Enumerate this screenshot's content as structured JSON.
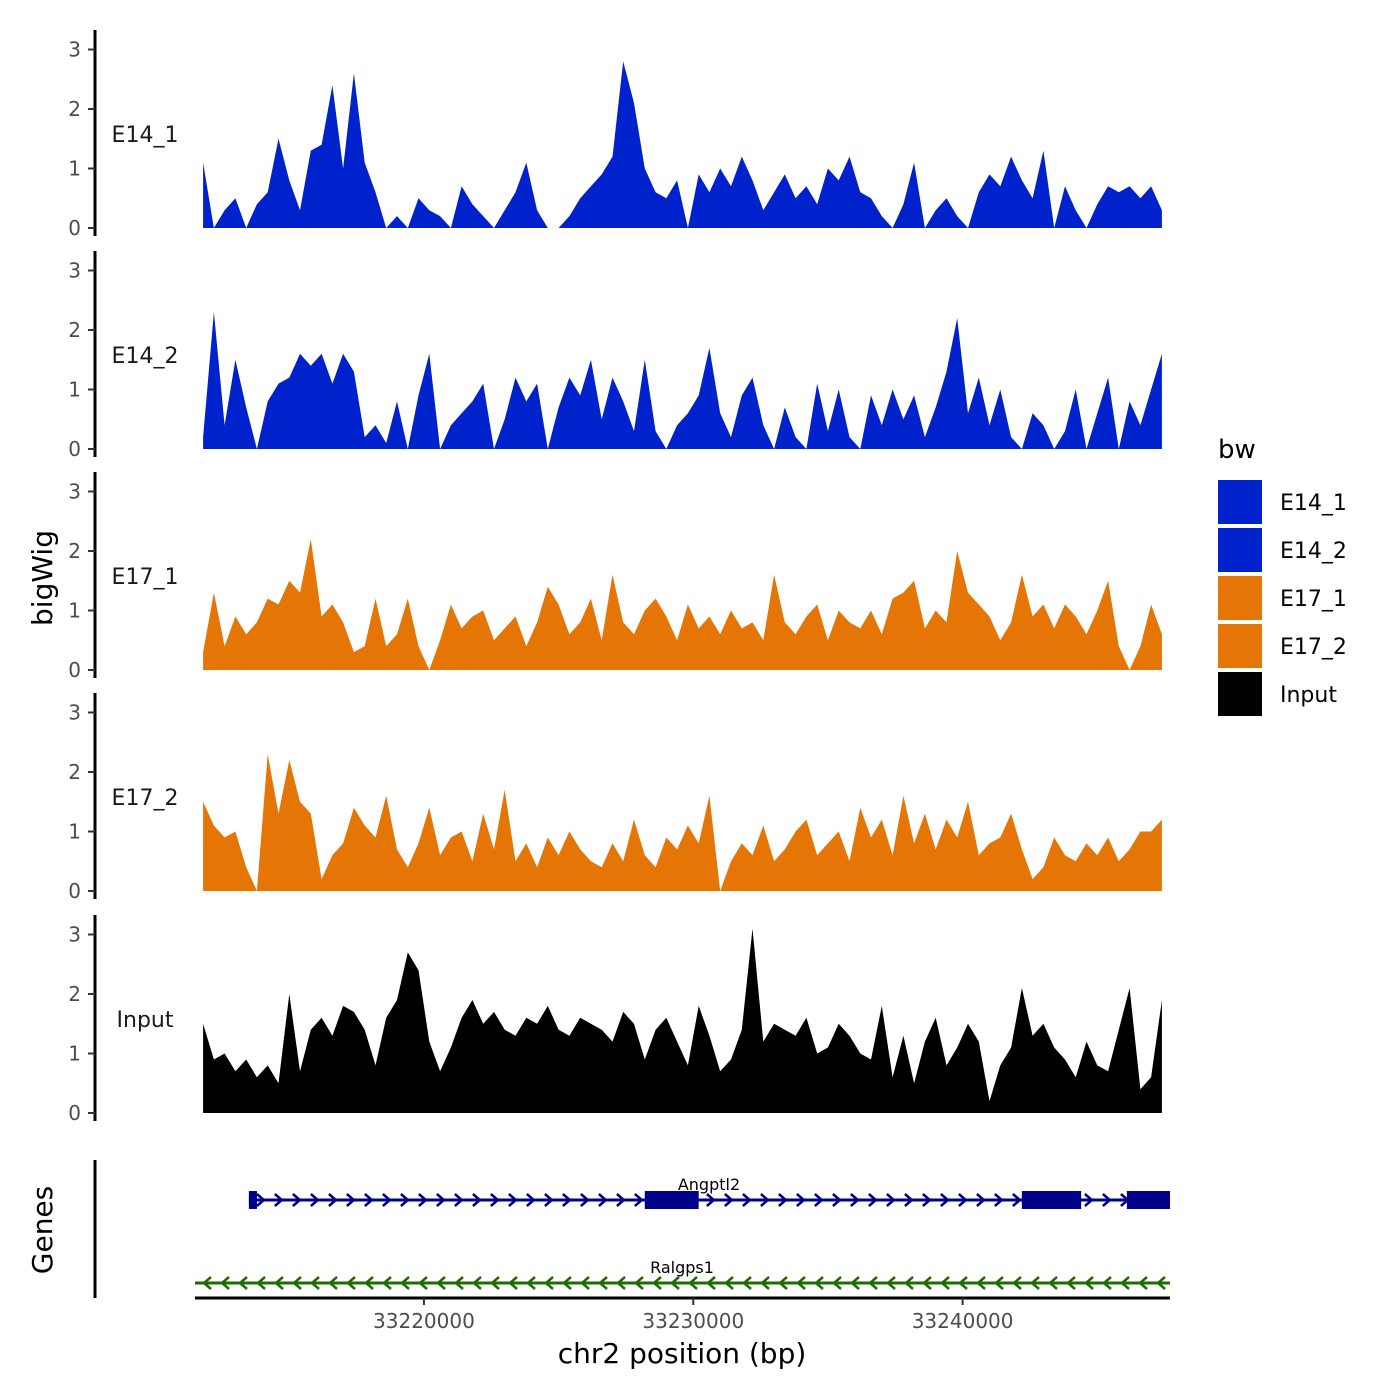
{
  "chart_data": {
    "type": "area",
    "title": "",
    "ylabel": "bigWig",
    "xlabel": "chr2 position (bp)",
    "xlim": [
      33211500,
      33247700
    ],
    "ylim": [
      0,
      3.3
    ],
    "y_ticks": [
      0,
      1,
      2,
      3
    ],
    "x_ticks": [
      33220000,
      33230000,
      33240000
    ],
    "x_tick_labels": [
      "33220000",
      "33230000",
      "33240000"
    ],
    "genes_label": "Genes",
    "legend": {
      "title": "bw",
      "entries": [
        {
          "label": "E14_1",
          "color": "#0022CC"
        },
        {
          "label": "E14_2",
          "color": "#0022CC"
        },
        {
          "label": "E17_1",
          "color": "#E57504"
        },
        {
          "label": "E17_2",
          "color": "#E57504"
        },
        {
          "label": "Input",
          "color": "#000000"
        }
      ]
    },
    "x": [
      33211800,
      33212200,
      33212600,
      33213000,
      33213400,
      33213800,
      33214200,
      33214600,
      33215000,
      33215400,
      33215800,
      33216200,
      33216600,
      33217000,
      33217400,
      33217800,
      33218200,
      33218600,
      33219000,
      33219400,
      33219800,
      33220200,
      33220600,
      33221000,
      33221400,
      33221800,
      33222200,
      33222600,
      33223000,
      33223400,
      33223800,
      33224200,
      33224600,
      33225000,
      33225400,
      33225800,
      33226200,
      33226600,
      33227000,
      33227400,
      33227800,
      33228200,
      33228600,
      33229000,
      33229400,
      33229800,
      33230200,
      33230600,
      33231000,
      33231400,
      33231800,
      33232200,
      33232600,
      33233000,
      33233400,
      33233800,
      33234200,
      33234600,
      33235000,
      33235400,
      33235800,
      33236200,
      33236600,
      33237000,
      33237400,
      33237800,
      33238200,
      33238600,
      33239000,
      33239400,
      33239800,
      33240200,
      33240600,
      33241000,
      33241400,
      33241800,
      33242200,
      33242600,
      33243000,
      33243400,
      33243800,
      33244200,
      33244600,
      33245000,
      33245400,
      33245800,
      33246200,
      33246600,
      33247000,
      33247400
    ],
    "series": [
      {
        "name": "E14_1",
        "color": "#0022CC",
        "values": [
          1.1,
          0,
          0.3,
          0.5,
          0,
          0.4,
          0.6,
          1.5,
          0.8,
          0.3,
          1.3,
          1.4,
          2.4,
          1.0,
          2.6,
          1.1,
          0.6,
          0,
          0.2,
          0,
          0.5,
          0.3,
          0.2,
          0,
          0.7,
          0.4,
          0.2,
          0,
          0.3,
          0.6,
          1.1,
          0.3,
          0,
          0,
          0.2,
          0.5,
          0.7,
          0.9,
          1.2,
          2.8,
          2.1,
          1.0,
          0.6,
          0.5,
          0.8,
          0,
          0.9,
          0.6,
          1.0,
          0.7,
          1.2,
          0.8,
          0.3,
          0.6,
          0.9,
          0.5,
          0.7,
          0.4,
          1.0,
          0.8,
          1.2,
          0.6,
          0.5,
          0.2,
          0,
          0.4,
          1.1,
          0,
          0.3,
          0.5,
          0.2,
          0,
          0.6,
          0.9,
          0.7,
          1.2,
          0.8,
          0.5,
          1.3,
          0,
          0.7,
          0.3,
          0,
          0.4,
          0.7,
          0.6,
          0.7,
          0.5,
          0.7,
          0.3
        ]
      },
      {
        "name": "E14_2",
        "color": "#0022CC",
        "values": [
          0.2,
          2.3,
          0.4,
          1.5,
          0.7,
          0,
          0.8,
          1.1,
          1.2,
          1.6,
          1.4,
          1.6,
          1.1,
          1.6,
          1.3,
          0.2,
          0.4,
          0.1,
          0.8,
          0,
          0.9,
          1.6,
          0,
          0.4,
          0.6,
          0.8,
          1.1,
          0,
          0.5,
          1.2,
          0.8,
          1.1,
          0,
          0.7,
          1.2,
          0.9,
          1.5,
          0.5,
          1.2,
          0.8,
          0.3,
          1.5,
          0.3,
          0,
          0.4,
          0.6,
          0.9,
          1.7,
          0.6,
          0.2,
          0.9,
          1.2,
          0.4,
          0,
          0.7,
          0.2,
          0,
          1.1,
          0.3,
          1.0,
          0.2,
          0,
          0.9,
          0.4,
          1.0,
          0.5,
          0.9,
          0.2,
          0.7,
          1.3,
          2.2,
          0.6,
          1.2,
          0.4,
          1.0,
          0.2,
          0,
          0.6,
          0.4,
          0,
          0.3,
          1.0,
          0,
          0.6,
          1.2,
          0,
          0.8,
          0.4,
          1.0,
          1.6
        ]
      },
      {
        "name": "E17_1",
        "color": "#E57504",
        "values": [
          0.3,
          1.3,
          0.4,
          0.9,
          0.6,
          0.8,
          1.2,
          1.1,
          1.5,
          1.3,
          2.2,
          0.9,
          1.1,
          0.8,
          0.3,
          0.4,
          1.2,
          0.4,
          0.6,
          1.2,
          0.4,
          0,
          0.5,
          1.1,
          0.7,
          0.9,
          1.0,
          0.5,
          0.7,
          0.9,
          0.4,
          0.8,
          1.4,
          1.1,
          0.6,
          0.8,
          1.2,
          0.5,
          1.6,
          0.8,
          0.6,
          1.0,
          1.2,
          0.9,
          0.5,
          1.1,
          0.7,
          0.9,
          0.6,
          1.0,
          0.7,
          0.8,
          0.5,
          1.6,
          0.8,
          0.6,
          0.9,
          1.1,
          0.5,
          1.0,
          0.8,
          0.7,
          1.0,
          0.6,
          1.2,
          1.3,
          1.5,
          0.7,
          1.0,
          0.8,
          2.0,
          1.3,
          1.1,
          0.9,
          0.5,
          0.8,
          1.6,
          0.9,
          1.1,
          0.7,
          1.1,
          0.9,
          0.6,
          1.0,
          1.5,
          0.4,
          0,
          0.4,
          1.1,
          0.6
        ]
      },
      {
        "name": "E17_2",
        "color": "#E57504",
        "values": [
          1.5,
          1.1,
          0.9,
          1.0,
          0.4,
          0,
          2.3,
          1.3,
          2.2,
          1.5,
          1.3,
          0.2,
          0.6,
          0.8,
          1.4,
          1.1,
          0.9,
          1.6,
          0.7,
          0.4,
          0.8,
          1.4,
          0.6,
          0.9,
          1.0,
          0.5,
          1.3,
          0.7,
          1.7,
          0.5,
          0.8,
          0.4,
          0.9,
          0.6,
          1.0,
          0.7,
          0.5,
          0.4,
          0.8,
          0.5,
          1.2,
          0.6,
          0.4,
          0.9,
          0.7,
          1.1,
          0.8,
          1.6,
          0,
          0.5,
          0.8,
          0.6,
          1.1,
          0.5,
          0.7,
          1.0,
          1.2,
          0.6,
          0.8,
          1.0,
          0.5,
          1.4,
          0.9,
          1.2,
          0.6,
          1.6,
          0.8,
          1.3,
          0.7,
          1.2,
          0.9,
          1.5,
          0.6,
          0.8,
          0.9,
          1.3,
          0.7,
          0.2,
          0.4,
          0.9,
          0.6,
          0.5,
          0.8,
          0.6,
          0.9,
          0.5,
          0.7,
          1.0,
          1.0,
          1.2
        ]
      },
      {
        "name": "Input",
        "color": "#000000",
        "values": [
          1.5,
          0.9,
          1.0,
          0.7,
          0.9,
          0.6,
          0.8,
          0.5,
          2.0,
          0.7,
          1.4,
          1.6,
          1.3,
          1.8,
          1.7,
          1.4,
          0.8,
          1.6,
          1.9,
          2.7,
          2.4,
          1.2,
          0.7,
          1.1,
          1.6,
          1.9,
          1.5,
          1.7,
          1.4,
          1.3,
          1.6,
          1.5,
          1.8,
          1.4,
          1.3,
          1.6,
          1.5,
          1.4,
          1.2,
          1.7,
          1.5,
          0.9,
          1.4,
          1.6,
          1.2,
          0.8,
          1.8,
          1.3,
          0.7,
          0.9,
          1.4,
          3.1,
          1.2,
          1.5,
          1.4,
          1.3,
          1.6,
          1.0,
          1.1,
          1.5,
          1.3,
          1.0,
          0.9,
          1.8,
          0.6,
          1.3,
          0.5,
          1.2,
          1.6,
          0.8,
          1.1,
          1.5,
          1.2,
          0.2,
          0.8,
          1.1,
          2.1,
          1.3,
          1.5,
          1.1,
          0.9,
          0.6,
          1.2,
          0.8,
          0.7,
          1.4,
          2.1,
          0.4,
          0.6,
          1.9
        ]
      }
    ],
    "genes": [
      {
        "name": "Angptl2",
        "strand": "+",
        "color": "#00008B",
        "start": 33213500,
        "end": 33247700,
        "exons": [
          [
            33213500,
            33213800
          ],
          [
            33228200,
            33230200
          ],
          [
            33242200,
            33244400
          ],
          [
            33246100,
            33247700
          ]
        ]
      },
      {
        "name": "Ralgps1",
        "strand": "-",
        "color": "#1E6B00",
        "start": 33211500,
        "end": 33247700,
        "exons": []
      }
    ]
  }
}
